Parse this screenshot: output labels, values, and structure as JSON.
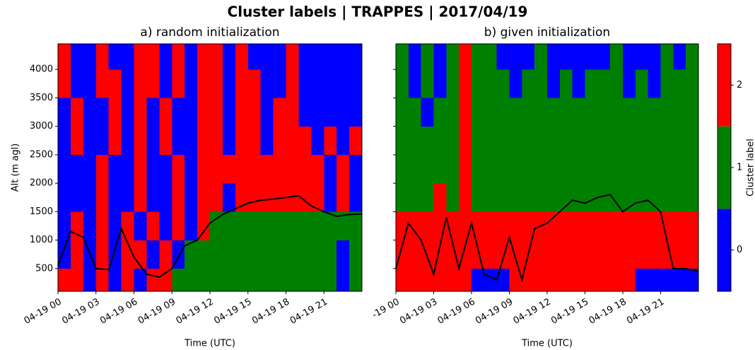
{
  "title": "Cluster labels | TRAPPES | 2017/04/19",
  "colorbar": {
    "label": "Cluster label",
    "colors": [
      "#0000ff",
      "#008000",
      "#ff0000"
    ],
    "lim": [
      -0.5,
      2.5
    ],
    "ticks": [
      0,
      1,
      2
    ]
  },
  "chart_data": [
    {
      "type": "heatmap",
      "title": "a) random initialization",
      "xlabel": "Time (UTC)",
      "ylabel": "Alt (m agl)",
      "xlim": [
        0,
        24
      ],
      "xticks": [
        {
          "value": 0,
          "label": "04-19 00"
        },
        {
          "value": 3,
          "label": "04-19 03"
        },
        {
          "value": 6,
          "label": "04-19 06"
        },
        {
          "value": 9,
          "label": "04-19 09"
        },
        {
          "value": 12,
          "label": "04-19 12"
        },
        {
          "value": 15,
          "label": "04-19 15"
        },
        {
          "value": 18,
          "label": "04-19 18"
        },
        {
          "value": 21,
          "label": "04-19 21"
        }
      ],
      "ylim": [
        100,
        4450
      ],
      "yticks": [
        500,
        1000,
        1500,
        2000,
        2500,
        3000,
        3500,
        4000
      ],
      "x_bins": [
        0,
        1,
        2,
        3,
        4,
        5,
        6,
        7,
        8,
        9,
        10,
        11,
        12,
        13,
        14,
        15,
        16,
        17,
        18,
        19,
        20,
        21,
        22,
        23,
        24
      ],
      "y_bins": [
        100,
        500,
        1000,
        1500,
        2000,
        2500,
        3000,
        3500,
        4000,
        4450
      ],
      "z": [
        [
          2,
          2,
          0,
          2,
          0,
          2,
          0,
          2,
          2,
          1,
          1,
          1,
          1,
          1,
          1,
          1,
          1,
          1,
          1,
          1,
          1,
          1,
          0,
          1
        ],
        [
          0,
          2,
          0,
          2,
          0,
          2,
          2,
          0,
          2,
          0,
          1,
          1,
          1,
          1,
          1,
          1,
          1,
          1,
          1,
          1,
          1,
          1,
          0,
          1
        ],
        [
          0,
          2,
          0,
          2,
          0,
          2,
          0,
          2,
          0,
          2,
          0,
          2,
          1,
          1,
          1,
          1,
          1,
          1,
          1,
          1,
          1,
          1,
          1,
          1
        ],
        [
          0,
          0,
          0,
          2,
          0,
          0,
          2,
          0,
          0,
          2,
          0,
          2,
          2,
          0,
          2,
          2,
          2,
          2,
          2,
          2,
          2,
          0,
          2,
          0
        ],
        [
          0,
          0,
          0,
          2,
          0,
          0,
          2,
          0,
          0,
          2,
          0,
          2,
          2,
          2,
          2,
          2,
          2,
          2,
          2,
          2,
          2,
          0,
          2,
          0
        ],
        [
          0,
          2,
          0,
          0,
          2,
          0,
          2,
          0,
          2,
          0,
          0,
          2,
          2,
          0,
          2,
          2,
          0,
          2,
          2,
          2,
          0,
          2,
          0,
          2
        ],
        [
          0,
          2,
          0,
          0,
          2,
          0,
          2,
          0,
          2,
          0,
          0,
          2,
          2,
          0,
          2,
          2,
          0,
          2,
          2,
          0,
          0,
          0,
          0,
          0
        ],
        [
          2,
          0,
          0,
          2,
          2,
          0,
          2,
          2,
          0,
          2,
          0,
          2,
          2,
          0,
          2,
          2,
          0,
          0,
          2,
          0,
          0,
          0,
          0,
          0
        ],
        [
          2,
          0,
          0,
          2,
          0,
          0,
          2,
          2,
          0,
          2,
          0,
          2,
          2,
          0,
          2,
          0,
          0,
          0,
          2,
          0,
          0,
          0,
          0,
          0
        ]
      ],
      "line": {
        "color": "#000000",
        "x": [
          0,
          1,
          2,
          3,
          4,
          5,
          6,
          7,
          8,
          9,
          10,
          11,
          12,
          13,
          14,
          15,
          16,
          17,
          18,
          19,
          20,
          21,
          22,
          23,
          24
        ],
        "values": [
          550,
          1150,
          1050,
          500,
          480,
          1200,
          700,
          400,
          350,
          500,
          900,
          1000,
          1300,
          1450,
          1550,
          1650,
          1700,
          1720,
          1750,
          1780,
          1600,
          1500,
          1420,
          1450,
          1460
        ]
      }
    },
    {
      "type": "heatmap",
      "title": "b) given initialization",
      "xlabel": "Time (UTC)",
      "xlim": [
        0,
        24
      ],
      "xticks": [
        {
          "value": 0,
          "label": "-19 00"
        },
        {
          "value": 3,
          "label": "04-19 03"
        },
        {
          "value": 6,
          "label": "04-19 06"
        },
        {
          "value": 9,
          "label": "04-19 09"
        },
        {
          "value": 12,
          "label": "04-19 12"
        },
        {
          "value": 15,
          "label": "04-19 15"
        },
        {
          "value": 18,
          "label": "04-19 18"
        },
        {
          "value": 21,
          "label": "04-19 21"
        }
      ],
      "ylim": [
        100,
        4450
      ],
      "yticks": [
        500,
        1000,
        1500,
        2000,
        2500,
        3000,
        3500,
        4000
      ],
      "x_bins": [
        0,
        1,
        2,
        3,
        4,
        5,
        6,
        7,
        8,
        9,
        10,
        11,
        12,
        13,
        14,
        15,
        16,
        17,
        18,
        19,
        20,
        21,
        22,
        23,
        24
      ],
      "y_bins": [
        100,
        500,
        1000,
        1500,
        2000,
        2500,
        3000,
        3500,
        4000,
        4450
      ],
      "z": [
        [
          2,
          2,
          2,
          2,
          2,
          2,
          0,
          0,
          0,
          2,
          2,
          2,
          2,
          2,
          2,
          2,
          2,
          2,
          2,
          0,
          0,
          0,
          0,
          0
        ],
        [
          2,
          2,
          2,
          2,
          2,
          2,
          2,
          2,
          2,
          2,
          2,
          2,
          2,
          2,
          2,
          2,
          2,
          2,
          2,
          2,
          2,
          2,
          2,
          2
        ],
        [
          2,
          2,
          2,
          2,
          2,
          2,
          2,
          2,
          2,
          2,
          2,
          2,
          2,
          2,
          2,
          2,
          2,
          2,
          2,
          2,
          2,
          2,
          2,
          2
        ],
        [
          1,
          1,
          1,
          2,
          1,
          2,
          1,
          1,
          1,
          1,
          1,
          1,
          1,
          1,
          1,
          1,
          1,
          1,
          1,
          1,
          1,
          1,
          1,
          1
        ],
        [
          1,
          1,
          1,
          1,
          1,
          2,
          1,
          1,
          1,
          1,
          1,
          1,
          1,
          1,
          1,
          1,
          1,
          1,
          1,
          1,
          1,
          1,
          1,
          1
        ],
        [
          1,
          1,
          1,
          1,
          1,
          2,
          1,
          1,
          1,
          1,
          1,
          1,
          1,
          1,
          1,
          1,
          1,
          1,
          1,
          1,
          1,
          1,
          1,
          1
        ],
        [
          1,
          1,
          0,
          1,
          1,
          2,
          1,
          1,
          1,
          1,
          1,
          1,
          1,
          1,
          1,
          1,
          1,
          1,
          1,
          1,
          1,
          1,
          1,
          1
        ],
        [
          1,
          0,
          1,
          0,
          1,
          2,
          1,
          1,
          1,
          0,
          1,
          1,
          0,
          1,
          0,
          1,
          1,
          1,
          0,
          1,
          0,
          1,
          1,
          1
        ],
        [
          1,
          0,
          1,
          0,
          1,
          2,
          1,
          1,
          0,
          0,
          0,
          1,
          0,
          0,
          0,
          0,
          0,
          1,
          0,
          0,
          0,
          1,
          0,
          1
        ]
      ],
      "line": {
        "color": "#000000",
        "x": [
          0,
          1,
          2,
          3,
          4,
          5,
          6,
          7,
          8,
          9,
          10,
          11,
          12,
          13,
          14,
          15,
          16,
          17,
          18,
          19,
          20,
          21,
          22,
          23,
          24
        ],
        "values": [
          500,
          1300,
          1000,
          400,
          1400,
          500,
          1300,
          400,
          300,
          1050,
          300,
          1200,
          1300,
          1500,
          1700,
          1650,
          1750,
          1800,
          1500,
          1650,
          1700,
          1500,
          500,
          500,
          450
        ]
      }
    }
  ]
}
